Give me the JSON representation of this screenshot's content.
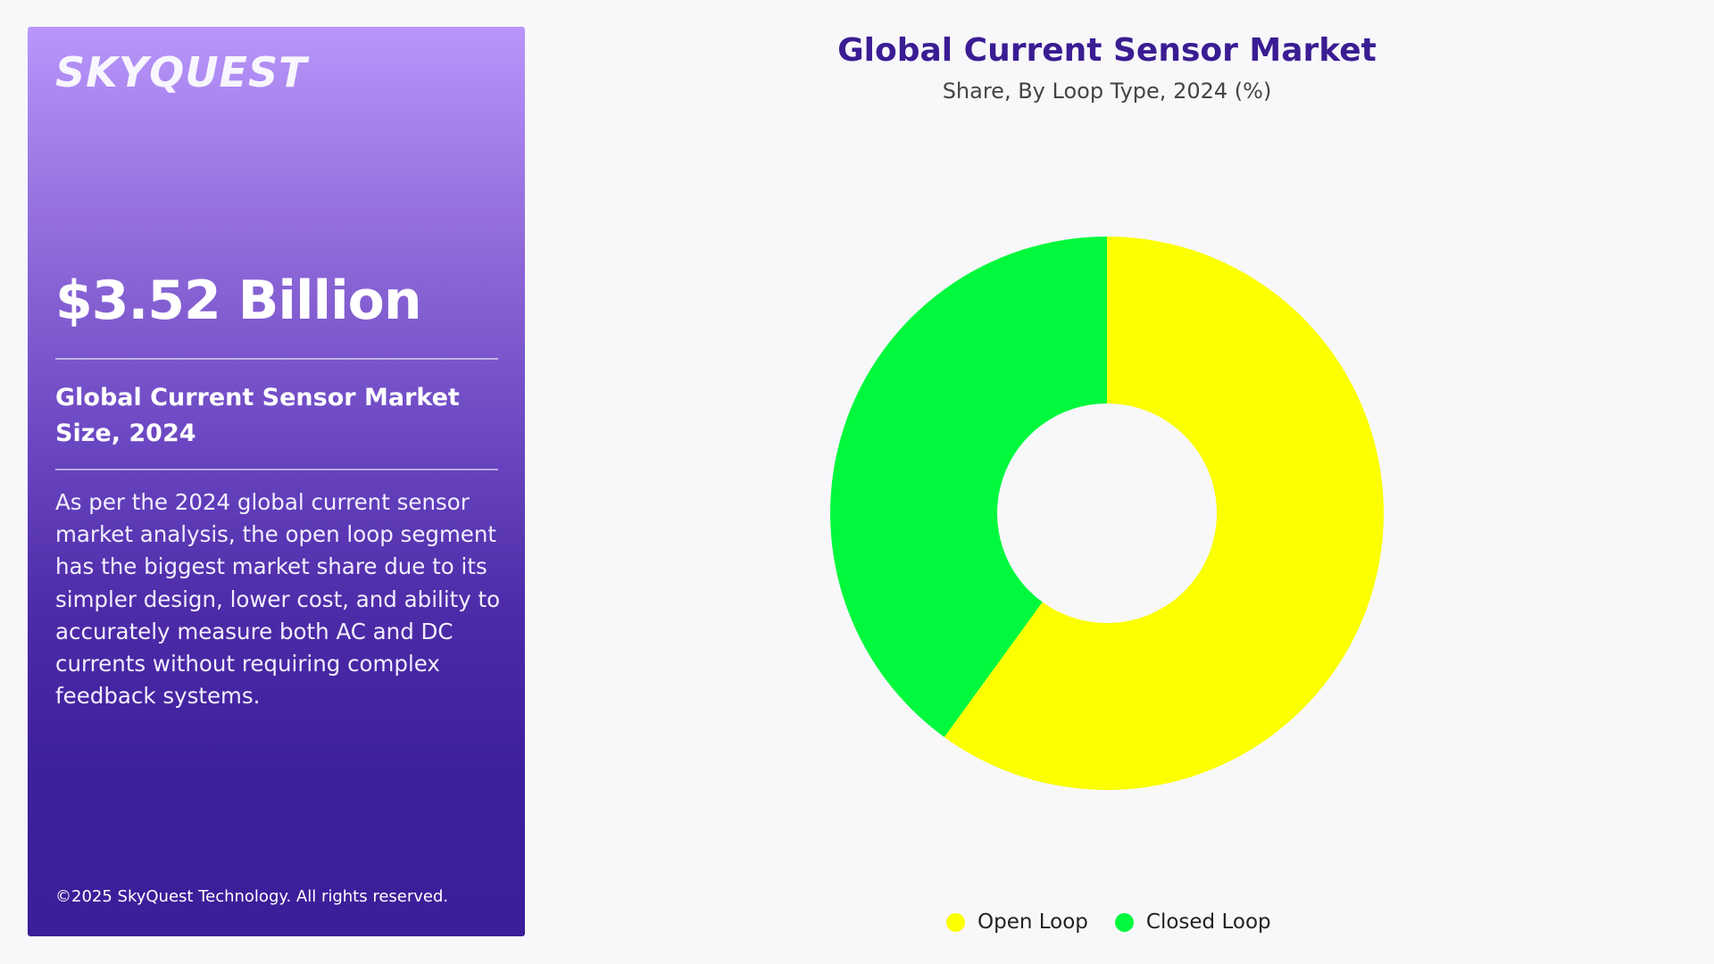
{
  "panel": {
    "logo": "SKYQUEST",
    "market_value": "$3.52 Billion",
    "metric_label": "Global Current Sensor Market Size, 2024",
    "description": "As per the 2024 global current sensor market analysis, the open loop segment has the biggest market share due to its simpler design, lower cost, and ability to accurately measure both AC and DC currents without requiring complex feedback systems.",
    "copyright": "©2025 SkyQuest Technology. All rights reserved."
  },
  "colors": {
    "title": "#3a1d93",
    "open_loop": "#fbff00",
    "closed_loop": "#00f93c",
    "panel_top": "#b896fb",
    "panel_bottom": "#3c1e9a"
  },
  "chart_data": {
    "type": "pie",
    "variant": "donut",
    "title": "Global Current Sensor Market",
    "subtitle": "Share, By Loop Type, 2024 (%)",
    "categories": [
      "Open Loop",
      "Closed Loop"
    ],
    "values": [
      60,
      40
    ],
    "colors": [
      "#fbff00",
      "#00f93c"
    ],
    "legend": {
      "position": "bottom",
      "items": [
        "Open Loop",
        "Closed Loop"
      ]
    }
  }
}
